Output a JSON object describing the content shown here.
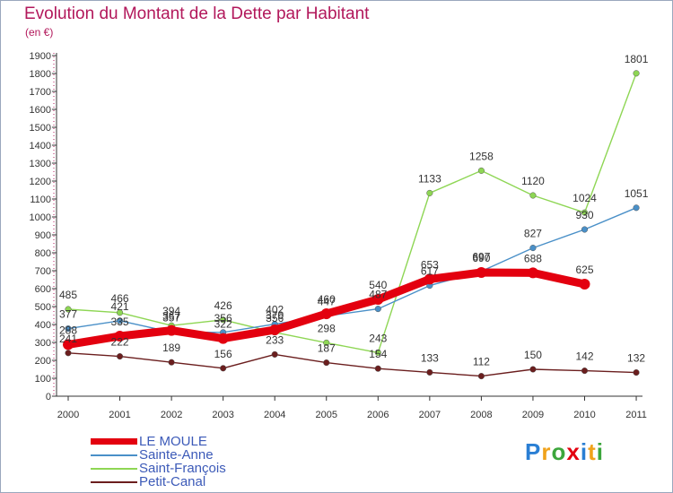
{
  "chart_data": {
    "type": "line",
    "title": "Evolution du Montant de la Dette par Habitant",
    "subtitle": "(en €)",
    "x": [
      "2000",
      "2001",
      "2002",
      "2003",
      "2004",
      "2005",
      "2006",
      "2007",
      "2008",
      "2009",
      "2010",
      "2011"
    ],
    "ylim": [
      0,
      1900
    ],
    "yticks": [
      0,
      100,
      200,
      300,
      400,
      500,
      600,
      700,
      800,
      900,
      1000,
      1100,
      1200,
      1300,
      1400,
      1500,
      1600,
      1700,
      1800,
      1900
    ],
    "grid": false,
    "legend_position": "bottom-left",
    "series": [
      {
        "name": "LE MOULE",
        "color": "#e3000f",
        "values": [
          288,
          335,
          367,
          322,
          370,
          460,
          540,
          653,
          690,
          688,
          625,
          null
        ]
      },
      {
        "name": "Sainte-Anne",
        "color": "#4a90c8",
        "values": [
          377,
          421,
          357,
          356,
          402,
          447,
          487,
          617,
          697,
          827,
          930,
          1051
        ]
      },
      {
        "name": "Saint-François",
        "color": "#8ed654",
        "values": [
          485,
          466,
          394,
          426,
          356,
          298,
          243,
          1133,
          1258,
          1120,
          1024,
          1801
        ]
      },
      {
        "name": "Petit-Canal",
        "color": "#6b1e1e",
        "values": [
          241,
          222,
          189,
          156,
          233,
          187,
          154,
          133,
          112,
          150,
          142,
          132
        ]
      }
    ],
    "data_labels": [
      {
        "series": 0,
        "values": [
          "288",
          "335",
          "367",
          "322",
          "370",
          "460",
          "540",
          "653",
          "690",
          "688",
          "625",
          ""
        ]
      },
      {
        "series": 1,
        "values": [
          "377",
          "421",
          "357",
          "356",
          "402",
          "447",
          "487",
          "617",
          "697",
          "827",
          "930",
          "1051"
        ]
      },
      {
        "series": 2,
        "values": [
          "485",
          "466",
          "394",
          "426",
          "356",
          "298",
          "243",
          "1133",
          "1258",
          "1120",
          "1024",
          "1801"
        ]
      },
      {
        "series": 3,
        "values": [
          "241",
          "222",
          "189",
          "156",
          "233",
          "187",
          "154",
          "133",
          "112",
          "150",
          "142",
          "132"
        ]
      }
    ]
  },
  "legend": {
    "items": [
      {
        "label": "LE MOULE"
      },
      {
        "label": "Sainte-Anne"
      },
      {
        "label": "Saint-François"
      },
      {
        "label": "Petit-Canal"
      }
    ]
  },
  "logo": {
    "text": "Proxiti",
    "letter_colors": [
      "#2a7fd4",
      "#f0a21a",
      "#3ca63c",
      "#e3000f",
      "#2a7fd4",
      "#f0a21a",
      "#3ca63c"
    ]
  }
}
